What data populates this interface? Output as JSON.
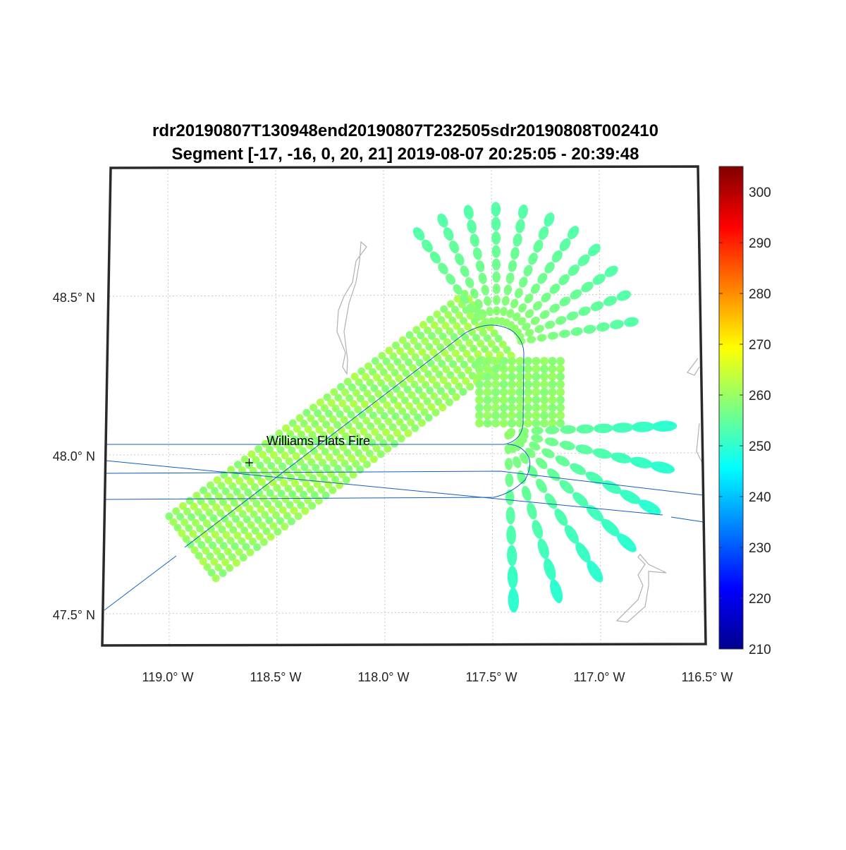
{
  "chart_data": {
    "type": "scatter",
    "title": [
      "rdr20190807T130948end20190807T232505sdr20190808T002410",
      "Segment [-17, -16, 0, 20, 21] 2019-08-07 20:25:05 - 20:39:48"
    ],
    "xlabel": "",
    "ylabel": "",
    "xlim": [
      -119.3,
      -116.5
    ],
    "ylim": [
      47.4,
      48.9
    ],
    "x_ticks": [
      -119.0,
      -118.5,
      -118.0,
      -117.5,
      -117.0,
      -116.5
    ],
    "x_tick_labels": [
      "119.0° W",
      "118.5° W",
      "118.0° W",
      "117.5° W",
      "117.0° W",
      "116.5° W"
    ],
    "y_ticks": [
      47.5,
      48.0,
      48.5
    ],
    "y_tick_labels": [
      "47.5° N",
      "48.0° N",
      "48.5° N"
    ],
    "grid": true,
    "colorbar": {
      "range": [
        210,
        305
      ],
      "ticks": [
        210,
        220,
        230,
        240,
        250,
        260,
        270,
        280,
        290,
        300
      ],
      "colormap": "jet",
      "placement": "right"
    },
    "annotation": {
      "label": "Williams Flats Fire",
      "lon": -118.62,
      "lat": 47.98,
      "marker": "+"
    },
    "series": [
      {
        "name": "swath footprints",
        "value_range": [
          258,
          263
        ]
      },
      {
        "name": "upper fan footprints",
        "value_range": [
          255,
          260
        ]
      },
      {
        "name": "square block footprints",
        "value_range": [
          258,
          261
        ]
      },
      {
        "name": "lower fan footprints",
        "value_range": [
          250,
          259
        ]
      }
    ]
  },
  "colors": {
    "track": "#1060c0",
    "coast": "#b0b0b0",
    "grid": "#c8c8c8"
  }
}
